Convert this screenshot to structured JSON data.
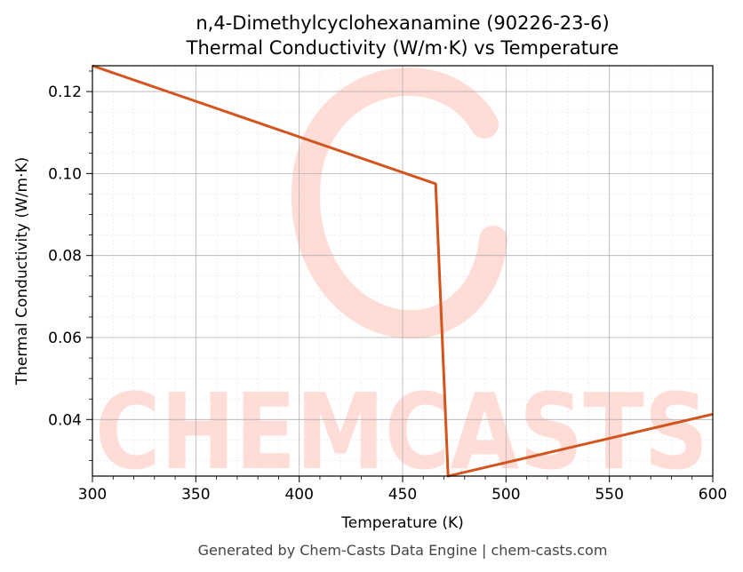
{
  "chart_data": {
    "type": "line",
    "title": "n,4-Dimethylcyclohexanamine (90226-23-6)",
    "subtitle": "Thermal Conductivity (W/m·K) vs Temperature",
    "xlabel": "Temperature (K)",
    "ylabel": "Thermal Conductivity (W/m·K)",
    "xlim": [
      300,
      600
    ],
    "ylim": [
      0.0262,
      0.1263
    ],
    "xticks": [
      300,
      350,
      400,
      450,
      500,
      550,
      600
    ],
    "xtick_labels": [
      "300",
      "350",
      "400",
      "450",
      "500",
      "550",
      "600"
    ],
    "yticks": [
      0.04,
      0.06,
      0.08,
      0.1,
      0.12
    ],
    "ytick_labels": [
      "0.04",
      "0.06",
      "0.08",
      "0.10",
      "0.12"
    ],
    "grid": true,
    "series": [
      {
        "color": "#d4541e",
        "x": [
          300,
          466,
          472,
          600
        ],
        "y": [
          0.1263,
          0.0975,
          0.0262,
          0.0413
        ]
      }
    ]
  },
  "watermark": {
    "text": "CHEMCASTS",
    "color": "#ffdcd6"
  },
  "footer": "Generated by Chem-Casts Data Engine | chem-casts.com"
}
